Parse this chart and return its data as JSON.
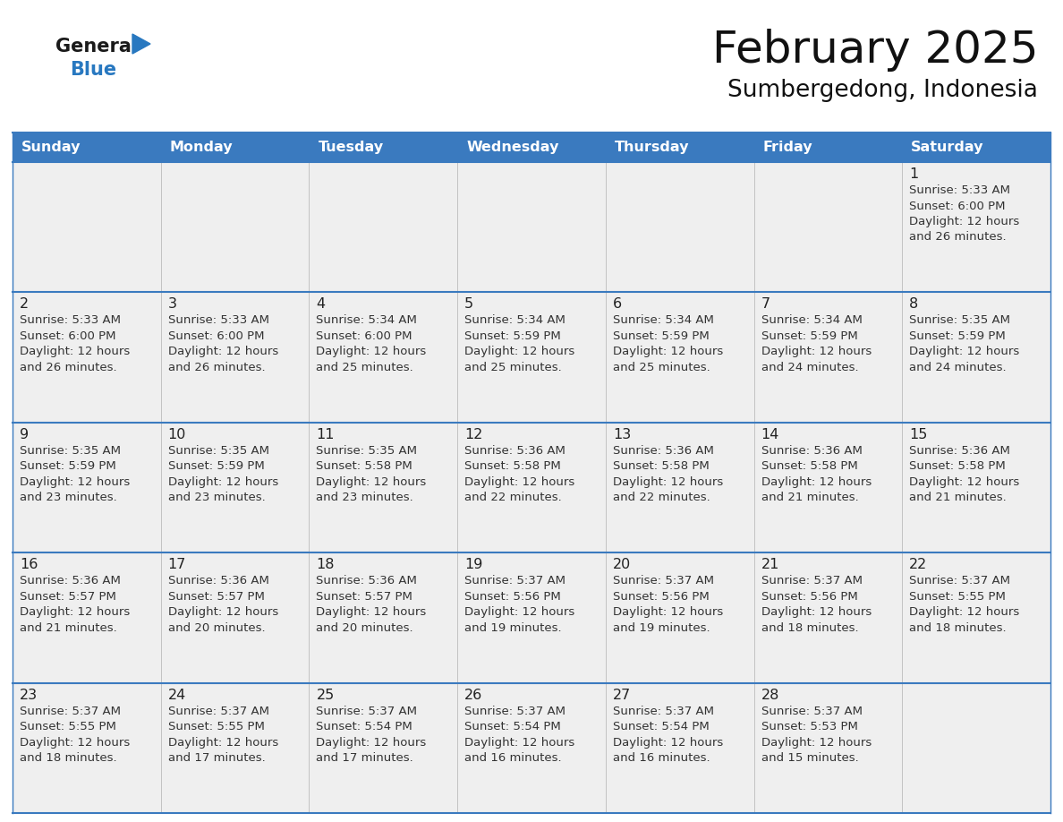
{
  "title": "February 2025",
  "subtitle": "Sumbergedong, Indonesia",
  "days_of_week": [
    "Sunday",
    "Monday",
    "Tuesday",
    "Wednesday",
    "Thursday",
    "Friday",
    "Saturday"
  ],
  "header_bg": "#3a7abf",
  "header_text": "#ffffff",
  "cell_bg": "#efefef",
  "border_color": "#3a7abf",
  "day_num_color": "#222222",
  "info_text_color": "#333333",
  "title_color": "#111111",
  "calendar_data": [
    [
      null,
      null,
      null,
      null,
      null,
      null,
      {
        "day": 1,
        "sunrise": "5:33 AM",
        "sunset": "6:00 PM",
        "daylight_hrs": "12 hours",
        "daylight_min": "and 26 minutes."
      }
    ],
    [
      {
        "day": 2,
        "sunrise": "5:33 AM",
        "sunset": "6:00 PM",
        "daylight_hrs": "12 hours",
        "daylight_min": "and 26 minutes."
      },
      {
        "day": 3,
        "sunrise": "5:33 AM",
        "sunset": "6:00 PM",
        "daylight_hrs": "12 hours",
        "daylight_min": "and 26 minutes."
      },
      {
        "day": 4,
        "sunrise": "5:34 AM",
        "sunset": "6:00 PM",
        "daylight_hrs": "12 hours",
        "daylight_min": "and 25 minutes."
      },
      {
        "day": 5,
        "sunrise": "5:34 AM",
        "sunset": "5:59 PM",
        "daylight_hrs": "12 hours",
        "daylight_min": "and 25 minutes."
      },
      {
        "day": 6,
        "sunrise": "5:34 AM",
        "sunset": "5:59 PM",
        "daylight_hrs": "12 hours",
        "daylight_min": "and 25 minutes."
      },
      {
        "day": 7,
        "sunrise": "5:34 AM",
        "sunset": "5:59 PM",
        "daylight_hrs": "12 hours",
        "daylight_min": "and 24 minutes."
      },
      {
        "day": 8,
        "sunrise": "5:35 AM",
        "sunset": "5:59 PM",
        "daylight_hrs": "12 hours",
        "daylight_min": "and 24 minutes."
      }
    ],
    [
      {
        "day": 9,
        "sunrise": "5:35 AM",
        "sunset": "5:59 PM",
        "daylight_hrs": "12 hours",
        "daylight_min": "and 23 minutes."
      },
      {
        "day": 10,
        "sunrise": "5:35 AM",
        "sunset": "5:59 PM",
        "daylight_hrs": "12 hours",
        "daylight_min": "and 23 minutes."
      },
      {
        "day": 11,
        "sunrise": "5:35 AM",
        "sunset": "5:58 PM",
        "daylight_hrs": "12 hours",
        "daylight_min": "and 23 minutes."
      },
      {
        "day": 12,
        "sunrise": "5:36 AM",
        "sunset": "5:58 PM",
        "daylight_hrs": "12 hours",
        "daylight_min": "and 22 minutes."
      },
      {
        "day": 13,
        "sunrise": "5:36 AM",
        "sunset": "5:58 PM",
        "daylight_hrs": "12 hours",
        "daylight_min": "and 22 minutes."
      },
      {
        "day": 14,
        "sunrise": "5:36 AM",
        "sunset": "5:58 PM",
        "daylight_hrs": "12 hours",
        "daylight_min": "and 21 minutes."
      },
      {
        "day": 15,
        "sunrise": "5:36 AM",
        "sunset": "5:58 PM",
        "daylight_hrs": "12 hours",
        "daylight_min": "and 21 minutes."
      }
    ],
    [
      {
        "day": 16,
        "sunrise": "5:36 AM",
        "sunset": "5:57 PM",
        "daylight_hrs": "12 hours",
        "daylight_min": "and 21 minutes."
      },
      {
        "day": 17,
        "sunrise": "5:36 AM",
        "sunset": "5:57 PM",
        "daylight_hrs": "12 hours",
        "daylight_min": "and 20 minutes."
      },
      {
        "day": 18,
        "sunrise": "5:36 AM",
        "sunset": "5:57 PM",
        "daylight_hrs": "12 hours",
        "daylight_min": "and 20 minutes."
      },
      {
        "day": 19,
        "sunrise": "5:37 AM",
        "sunset": "5:56 PM",
        "daylight_hrs": "12 hours",
        "daylight_min": "and 19 minutes."
      },
      {
        "day": 20,
        "sunrise": "5:37 AM",
        "sunset": "5:56 PM",
        "daylight_hrs": "12 hours",
        "daylight_min": "and 19 minutes."
      },
      {
        "day": 21,
        "sunrise": "5:37 AM",
        "sunset": "5:56 PM",
        "daylight_hrs": "12 hours",
        "daylight_min": "and 18 minutes."
      },
      {
        "day": 22,
        "sunrise": "5:37 AM",
        "sunset": "5:55 PM",
        "daylight_hrs": "12 hours",
        "daylight_min": "and 18 minutes."
      }
    ],
    [
      {
        "day": 23,
        "sunrise": "5:37 AM",
        "sunset": "5:55 PM",
        "daylight_hrs": "12 hours",
        "daylight_min": "and 18 minutes."
      },
      {
        "day": 24,
        "sunrise": "5:37 AM",
        "sunset": "5:55 PM",
        "daylight_hrs": "12 hours",
        "daylight_min": "and 17 minutes."
      },
      {
        "day": 25,
        "sunrise": "5:37 AM",
        "sunset": "5:54 PM",
        "daylight_hrs": "12 hours",
        "daylight_min": "and 17 minutes."
      },
      {
        "day": 26,
        "sunrise": "5:37 AM",
        "sunset": "5:54 PM",
        "daylight_hrs": "12 hours",
        "daylight_min": "and 16 minutes."
      },
      {
        "day": 27,
        "sunrise": "5:37 AM",
        "sunset": "5:54 PM",
        "daylight_hrs": "12 hours",
        "daylight_min": "and 16 minutes."
      },
      {
        "day": 28,
        "sunrise": "5:37 AM",
        "sunset": "5:53 PM",
        "daylight_hrs": "12 hours",
        "daylight_min": "and 15 minutes."
      },
      null
    ]
  ]
}
